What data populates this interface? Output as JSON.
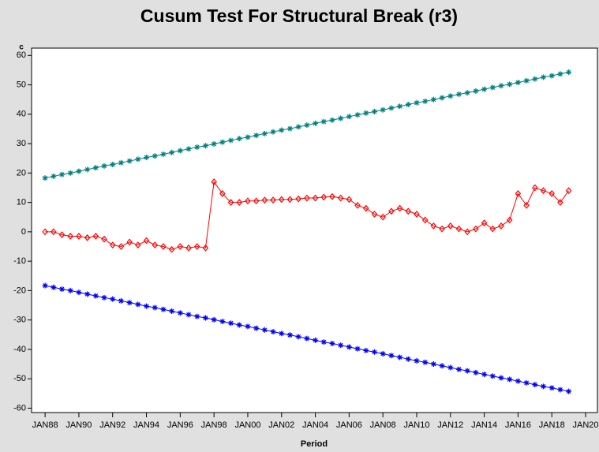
{
  "chart_data": {
    "type": "line",
    "title": "Cusum Test For Structural Break (r3)",
    "x_label": "Period",
    "y_label": "c",
    "x": [
      1988,
      1988.5,
      1989,
      1989.5,
      1990,
      1990.5,
      1991,
      1991.5,
      1992,
      1992.5,
      1993,
      1993.5,
      1994,
      1994.5,
      1995,
      1995.5,
      1996,
      1996.5,
      1997,
      1997.5,
      1998,
      1998.5,
      1999,
      1999.5,
      2000,
      2000.5,
      2001,
      2001.5,
      2002,
      2002.5,
      2003,
      2003.5,
      2004,
      2004.5,
      2005,
      2005.5,
      2006,
      2006.5,
      2007,
      2007.5,
      2008,
      2008.5,
      2009,
      2009.5,
      2010,
      2010.5,
      2011,
      2011.5,
      2012,
      2012.5,
      2013,
      2013.5,
      2014,
      2014.5,
      2015,
      2015.5,
      2016,
      2016.5,
      2017,
      2017.5,
      2018,
      2018.5,
      2019
    ],
    "series": [
      {
        "color": "#ff0000",
        "marker": "diamond",
        "values": [
          0,
          0,
          -1,
          -1.5,
          -1.5,
          -2,
          -1.5,
          -2.5,
          -4.5,
          -5,
          -3.5,
          -4.5,
          -3,
          -4.5,
          -5,
          -6,
          -5,
          -5.5,
          -5,
          -5.5,
          17,
          13,
          10,
          10,
          10.5,
          10.5,
          10.8,
          10.8,
          11,
          11,
          11.2,
          11.5,
          11.5,
          11.8,
          12,
          11.5,
          11,
          9,
          8,
          6,
          5,
          7,
          8,
          7,
          6,
          4,
          2,
          1,
          2,
          1,
          0,
          1,
          3,
          1,
          2,
          4,
          13,
          9,
          15,
          14,
          13,
          10,
          14
        ]
      },
      {
        "color": "#008080",
        "marker": "star",
        "values": [
          18.3,
          18.9,
          19.5,
          20.0,
          20.6,
          21.2,
          21.8,
          22.4,
          22.9,
          23.5,
          24.1,
          24.7,
          25.3,
          25.8,
          26.4,
          27.0,
          27.6,
          28.2,
          28.8,
          29.3,
          29.9,
          30.5,
          31.1,
          31.7,
          32.2,
          32.8,
          33.4,
          34.0,
          34.6,
          35.1,
          35.7,
          36.3,
          36.9,
          37.5,
          38.0,
          38.6,
          39.2,
          39.8,
          40.4,
          40.9,
          41.5,
          42.1,
          42.7,
          43.3,
          43.9,
          44.4,
          45.0,
          45.6,
          46.2,
          46.8,
          47.3,
          47.9,
          48.5,
          49.1,
          49.7,
          50.2,
          50.8,
          51.4,
          52.0,
          52.6,
          53.1,
          53.7,
          54.3
        ]
      },
      {
        "color": "#0000ff",
        "marker": "star",
        "values": [
          -18.3,
          -18.9,
          -19.5,
          -20.0,
          -20.6,
          -21.2,
          -21.8,
          -22.4,
          -22.9,
          -23.5,
          -24.1,
          -24.7,
          -25.3,
          -25.8,
          -26.4,
          -27.0,
          -27.6,
          -28.2,
          -28.8,
          -29.3,
          -29.9,
          -30.5,
          -31.1,
          -31.7,
          -32.2,
          -32.8,
          -33.4,
          -34.0,
          -34.6,
          -35.1,
          -35.7,
          -36.3,
          -36.9,
          -37.5,
          -38.0,
          -38.6,
          -39.2,
          -39.8,
          -40.4,
          -40.9,
          -41.5,
          -42.1,
          -42.7,
          -43.3,
          -43.9,
          -44.4,
          -45.0,
          -45.6,
          -46.2,
          -46.8,
          -47.3,
          -47.9,
          -48.5,
          -49.1,
          -49.7,
          -50.2,
          -50.8,
          -51.4,
          -52.0,
          -52.6,
          -53.1,
          -53.7,
          -54.3
        ]
      }
    ],
    "xlim": [
      1987.2,
      2020.7
    ],
    "xticks": [
      {
        "value": 1988,
        "label": "JAN88"
      },
      {
        "value": 1990,
        "label": "JAN90"
      },
      {
        "value": 1992,
        "label": "JAN92"
      },
      {
        "value": 1994,
        "label": "JAN94"
      },
      {
        "value": 1996,
        "label": "JAN96"
      },
      {
        "value": 1998,
        "label": "JAN98"
      },
      {
        "value": 2000,
        "label": "JAN00"
      },
      {
        "value": 2002,
        "label": "JAN02"
      },
      {
        "value": 2004,
        "label": "JAN04"
      },
      {
        "value": 2006,
        "label": "JAN06"
      },
      {
        "value": 2008,
        "label": "JAN08"
      },
      {
        "value": 2010,
        "label": "JAN10"
      },
      {
        "value": 2012,
        "label": "JAN12"
      },
      {
        "value": 2014,
        "label": "JAN14"
      },
      {
        "value": 2016,
        "label": "JAN16"
      },
      {
        "value": 2018,
        "label": "JAN18"
      },
      {
        "value": 2020,
        "label": "JAN20"
      }
    ],
    "ylim": [
      -61.5,
      62.5
    ],
    "yticks": [
      -60,
      -50,
      -40,
      -30,
      -20,
      -10,
      0,
      10,
      20,
      30,
      40,
      50,
      60
    ]
  }
}
